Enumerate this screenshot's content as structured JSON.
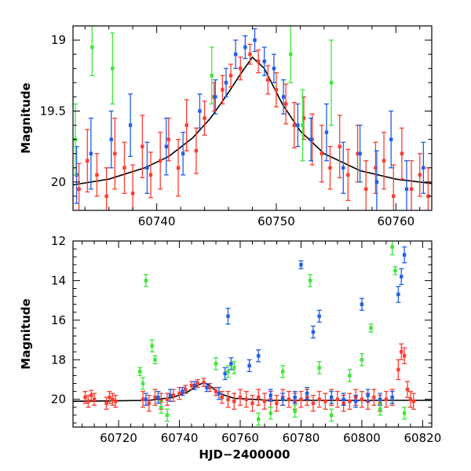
{
  "chart_data": [
    {
      "type": "scatter",
      "title": "",
      "xlabel": "",
      "ylabel": "Magnitude",
      "xlim": [
        60733,
        60763
      ],
      "ylim": [
        20.2,
        18.9
      ],
      "y_inverted": true,
      "x_ticks": [
        60740,
        60750,
        60760
      ],
      "x_tick_labels": [
        "60740",
        "60750",
        "60760"
      ],
      "y_ticks": [
        19,
        19.5,
        20
      ],
      "y_tick_labels": [
        "19",
        "19.5",
        "20"
      ],
      "error_bars": true,
      "grid": false,
      "legend": "none",
      "model_curve": {
        "color": "#000000",
        "x": [
          60733,
          60736,
          60739,
          60741,
          60743,
          60744.5,
          60746,
          60747,
          60748,
          60749,
          60750.5,
          60752,
          60754,
          60757,
          60760,
          60763
        ],
        "y": [
          20.02,
          19.98,
          19.9,
          19.82,
          19.69,
          19.55,
          19.37,
          19.24,
          19.12,
          19.2,
          19.45,
          19.64,
          19.8,
          19.92,
          19.98,
          20.01
        ]
      },
      "series": [
        {
          "color": "#ff3b2f",
          "x": [
            60733.5,
            60734.2,
            60735,
            60735.8,
            60736.5,
            60737.3,
            60738,
            60738.8,
            60739.5,
            60740.3,
            60741,
            60741.8,
            60742.5,
            60743.3,
            60744,
            60744.8,
            60745.5,
            60746.2,
            60747,
            60747.8,
            60748.5,
            60749.3,
            60750,
            60750.8,
            60751.5,
            60752.3,
            60753,
            60753.8,
            60754.5,
            60755.3,
            60756,
            60756.8,
            60757.5,
            60758.3,
            60759,
            60759.8,
            60760.5,
            60761.3,
            60762,
            60762.7
          ],
          "y": [
            20.05,
            19.85,
            19.95,
            20.1,
            19.8,
            19.9,
            20.08,
            19.75,
            19.95,
            19.85,
            19.7,
            19.9,
            19.6,
            19.78,
            19.55,
            19.4,
            19.35,
            19.25,
            19.2,
            19.1,
            19.15,
            19.28,
            19.35,
            19.45,
            19.6,
            19.55,
            19.7,
            19.8,
            19.9,
            19.75,
            19.95,
            19.8,
            20.05,
            19.9,
            19.85,
            20.1,
            19.8,
            20.05,
            19.95,
            20.1
          ],
          "err": [
            0.18,
            0.22,
            0.15,
            0.2,
            0.25,
            0.18,
            0.2,
            0.22,
            0.16,
            0.2,
            0.15,
            0.2,
            0.18,
            0.16,
            0.12,
            0.1,
            0.1,
            0.08,
            0.08,
            0.07,
            0.08,
            0.1,
            0.12,
            0.14,
            0.16,
            0.15,
            0.18,
            0.2,
            0.15,
            0.22,
            0.18,
            0.2,
            0.2,
            0.18,
            0.2,
            0.22,
            0.18,
            0.2,
            0.15,
            0.2
          ]
        },
        {
          "color": "#1f5fe8",
          "x": [
            60733.3,
            60734.5,
            60736.2,
            60737.8,
            60739.2,
            60740.8,
            60742.2,
            60743.6,
            60744.9,
            60745.8,
            60746.6,
            60747.4,
            60748.2,
            60749,
            60749.8,
            60750.6,
            60751.8,
            60752.9,
            60754.2,
            60755.6,
            60757,
            60758.4,
            60759.6,
            60760.9,
            60762.3
          ],
          "y": [
            19.95,
            19.8,
            19.7,
            19.6,
            19.9,
            19.75,
            19.8,
            19.5,
            19.4,
            19.3,
            19.1,
            19.05,
            19.0,
            19.15,
            19.2,
            19.4,
            19.6,
            19.7,
            19.65,
            19.9,
            19.8,
            20.0,
            19.7,
            20.05,
            19.9
          ],
          "err": [
            0.2,
            0.25,
            0.2,
            0.22,
            0.18,
            0.2,
            0.15,
            0.12,
            0.12,
            0.1,
            0.1,
            0.08,
            0.08,
            0.1,
            0.1,
            0.12,
            0.15,
            0.15,
            0.2,
            0.18,
            0.2,
            0.22,
            0.2,
            0.2,
            0.18
          ]
        },
        {
          "color": "#3ee63a",
          "x": [
            60733.2,
            60734.6,
            60736.3,
            60744.6,
            60751.2,
            60752.2,
            60754.6
          ],
          "y": [
            19.7,
            19.05,
            19.2,
            19.25,
            19.1,
            19.6,
            19.3
          ],
          "err": [
            0.25,
            0.2,
            0.25,
            0.2,
            0.2,
            0.25,
            0.3
          ]
        }
      ]
    },
    {
      "type": "scatter",
      "title": "",
      "xlabel": "HJD−2400000",
      "ylabel": "Magnitude",
      "xlim": [
        60705,
        60823
      ],
      "ylim": [
        21.4,
        12.0
      ],
      "y_inverted": true,
      "x_ticks": [
        60720,
        60740,
        60760,
        60780,
        60800,
        60820
      ],
      "x_tick_labels": [
        "60720",
        "60740",
        "60760",
        "60780",
        "60800",
        "60820"
      ],
      "y_ticks": [
        12,
        14,
        16,
        18,
        20
      ],
      "y_tick_labels": [
        "12",
        "14",
        "16",
        "18",
        "20"
      ],
      "error_bars": true,
      "grid": false,
      "legend": "none",
      "model_curve": {
        "color": "#000000",
        "x": [
          60705,
          60730,
          60738,
          60743,
          60746,
          60748,
          60750,
          60753,
          60758,
          60770,
          60823
        ],
        "y": [
          20.1,
          20.05,
          19.9,
          19.6,
          19.3,
          19.15,
          19.3,
          19.7,
          19.95,
          20.05,
          20.05
        ]
      },
      "series": [
        {
          "color": "#ff3b2f",
          "x": [
            60709,
            60710,
            60711,
            60712,
            60716,
            60717,
            60718,
            60719,
            60728,
            60730,
            60732,
            60734,
            60736,
            60738,
            60740,
            60742,
            60744,
            60746,
            60748,
            60750,
            60752,
            60754,
            60756,
            60758,
            60760,
            60762,
            60764,
            60766,
            60768,
            60770,
            60772,
            60774,
            60776,
            60778,
            60780,
            60782,
            60784,
            60786,
            60788,
            60790,
            60792,
            60794,
            60796,
            60798,
            60800,
            60802,
            60804,
            60806,
            60808,
            60810,
            60812,
            60813,
            60814,
            60815,
            60816,
            60817
          ],
          "y": [
            19.9,
            20.1,
            19.8,
            20.0,
            20.2,
            19.9,
            20.0,
            20.1,
            20.0,
            20.2,
            19.9,
            20.1,
            20.0,
            19.8,
            19.7,
            19.5,
            19.3,
            19.2,
            19.15,
            19.4,
            19.6,
            19.9,
            20.0,
            20.1,
            19.9,
            20.0,
            20.2,
            19.9,
            20.1,
            20.0,
            20.2,
            19.9,
            20.0,
            20.1,
            20.0,
            19.9,
            20.2,
            20.0,
            20.1,
            19.9,
            20.0,
            20.2,
            20.1,
            19.9,
            20.0,
            20.1,
            19.9,
            20.2,
            20.0,
            19.9,
            18.5,
            17.6,
            17.8,
            19.5,
            20.0,
            20.1
          ],
          "err": [
            0.3,
            0.3,
            0.25,
            0.3,
            0.3,
            0.3,
            0.3,
            0.3,
            0.4,
            0.4,
            0.4,
            0.4,
            0.3,
            0.3,
            0.3,
            0.2,
            0.2,
            0.2,
            0.2,
            0.2,
            0.2,
            0.3,
            0.4,
            0.4,
            0.4,
            0.4,
            0.4,
            0.4,
            0.4,
            0.4,
            0.4,
            0.4,
            0.4,
            0.4,
            0.4,
            0.4,
            0.4,
            0.4,
            0.4,
            0.4,
            0.4,
            0.4,
            0.4,
            0.4,
            0.4,
            0.4,
            0.4,
            0.4,
            0.4,
            0.4,
            0.5,
            0.4,
            0.4,
            0.4,
            0.4,
            0.4
          ]
        },
        {
          "color": "#1f5fe8",
          "x": [
            60729,
            60733,
            60737,
            60741,
            60745,
            60749,
            60753,
            60755,
            60756,
            60757,
            60763,
            60766,
            60770,
            60774,
            60778,
            60780,
            60782,
            60784,
            60786,
            60790,
            60794,
            60798,
            60800,
            60802,
            60806,
            60810,
            60812,
            60813,
            60814
          ],
          "y": [
            20.0,
            19.9,
            19.8,
            19.6,
            19.3,
            19.4,
            19.7,
            18.7,
            15.8,
            18.2,
            18.3,
            17.8,
            19.8,
            20.0,
            19.9,
            13.2,
            19.7,
            16.6,
            15.8,
            19.9,
            20.0,
            20.1,
            15.2,
            19.8,
            20.0,
            19.9,
            14.7,
            13.8,
            12.7
          ],
          "err": [
            0.3,
            0.3,
            0.3,
            0.2,
            0.2,
            0.2,
            0.3,
            0.3,
            0.4,
            0.3,
            0.3,
            0.3,
            0.3,
            0.3,
            0.3,
            0.2,
            0.3,
            0.3,
            0.3,
            0.3,
            0.3,
            0.3,
            0.3,
            0.3,
            0.3,
            0.3,
            0.4,
            0.4,
            0.4
          ]
        },
        {
          "color": "#3ee63a",
          "x": [
            60727,
            60728,
            60729,
            60731,
            60732,
            60734,
            60736,
            60752,
            60756,
            60758,
            60766,
            60770,
            60774,
            60778,
            60783,
            60786,
            60790,
            60796,
            60800,
            60803,
            60806,
            60810,
            60811,
            60814
          ],
          "y": [
            18.6,
            19.2,
            14.0,
            17.3,
            18.0,
            20.4,
            20.8,
            18.2,
            18.6,
            18.4,
            21.0,
            20.7,
            18.6,
            20.6,
            14.0,
            18.4,
            20.8,
            18.8,
            18.0,
            16.4,
            20.5,
            12.3,
            13.5,
            20.7
          ],
          "err": [
            0.2,
            0.3,
            0.3,
            0.3,
            0.2,
            0.3,
            0.3,
            0.3,
            0.3,
            0.3,
            0.3,
            0.3,
            0.3,
            0.3,
            0.3,
            0.3,
            0.3,
            0.3,
            0.3,
            0.2,
            0.3,
            0.4,
            0.2,
            0.3
          ]
        }
      ]
    }
  ]
}
